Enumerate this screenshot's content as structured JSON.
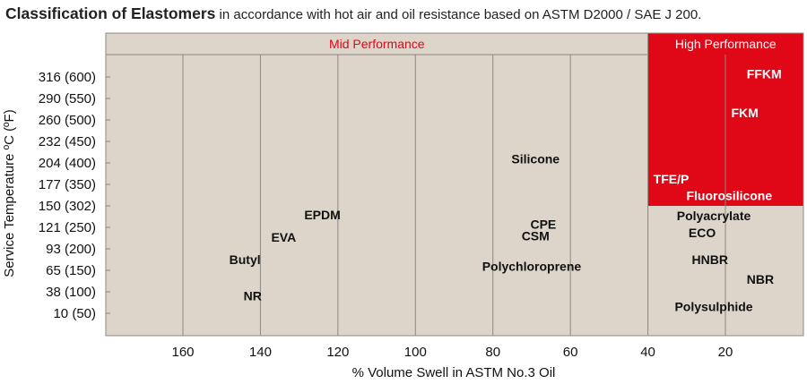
{
  "title": {
    "main": "Classification of Elastomers",
    "sub": " in accordance with hot air and oil resistance based on ASTM D2000 / SAE J 200."
  },
  "colors": {
    "background": "#ddd4ca",
    "accent_red": "#e00716",
    "grid": "#8f8880",
    "text": "#111111"
  },
  "chart_data": {
    "type": "scatter",
    "title": "",
    "xlabel": "% Volume Swell in ASTM No.3 Oil",
    "ylabel": "Service Temperature ºC (ºF)",
    "xlim": [
      180,
      0
    ],
    "x_ticks": [
      160,
      140,
      120,
      100,
      80,
      60,
      40,
      20
    ],
    "x_tick_labels": [
      "160",
      "140",
      "120",
      "100",
      "80",
      "60",
      "40",
      "20"
    ],
    "y_ticks": [
      10,
      38,
      65,
      93,
      121,
      150,
      177,
      204,
      232,
      260,
      290,
      316
    ],
    "y_tick_labels": [
      "10 (50)",
      "38 (100)",
      "65 (150)",
      "93 (200)",
      "121 (250)",
      "150 (302)",
      "177 (350)",
      "204 (400)",
      "232 (450)",
      "260 (500)",
      "290 (550)",
      "316 (600)"
    ],
    "regions": [
      {
        "label": "Mid Performance",
        "x_range": [
          180,
          40
        ]
      },
      {
        "label": "High Performance",
        "x_range": [
          40,
          0
        ],
        "highlight_min_temp": 150
      }
    ],
    "points": [
      {
        "label": "FFKM",
        "x": 10,
        "y": 320
      },
      {
        "label": "FKM",
        "x": 15,
        "y": 270
      },
      {
        "label": "TFE/P",
        "x": 34,
        "y": 184
      },
      {
        "label": "Fluorosilicone",
        "x": 19,
        "y": 163
      },
      {
        "label": "Silicone",
        "x": 69,
        "y": 209
      },
      {
        "label": "Polyacrylate",
        "x": 23,
        "y": 137
      },
      {
        "label": "ECO",
        "x": 26,
        "y": 114
      },
      {
        "label": "HNBR",
        "x": 24,
        "y": 79
      },
      {
        "label": "NBR",
        "x": 11,
        "y": 54
      },
      {
        "label": "Polysulphide",
        "x": 23,
        "y": 19
      },
      {
        "label": "EPDM",
        "x": 124,
        "y": 138
      },
      {
        "label": "CPE",
        "x": 67,
        "y": 125
      },
      {
        "label": "CSM",
        "x": 69,
        "y": 110
      },
      {
        "label": "EVA",
        "x": 134,
        "y": 108
      },
      {
        "label": "Butyl",
        "x": 144,
        "y": 79
      },
      {
        "label": "NR",
        "x": 142,
        "y": 33
      },
      {
        "label": "Polychloroprene",
        "x": 70,
        "y": 70
      }
    ]
  }
}
